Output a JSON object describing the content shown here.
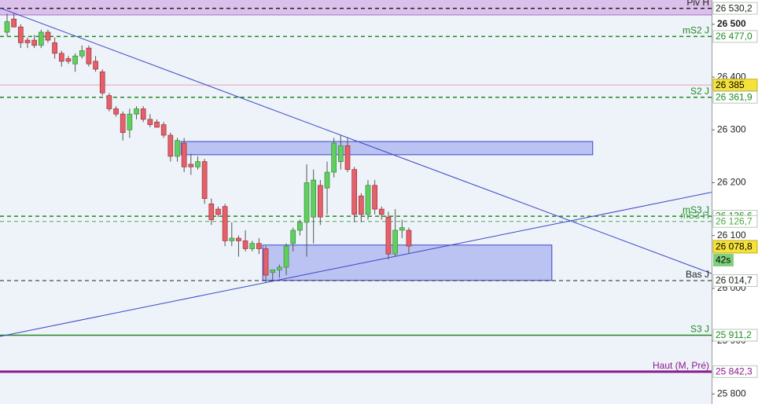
{
  "chart_data": {
    "type": "candlestick",
    "ylim": [
      25781,
      26546
    ],
    "yticks": [
      {
        "value": 26500,
        "label": "26 500",
        "bold": true
      },
      {
        "value": 26400,
        "label": "26 400"
      },
      {
        "value": 26300,
        "label": "26 300"
      },
      {
        "value": 26200,
        "label": "26 200"
      },
      {
        "value": 26100,
        "label": "26 100"
      },
      {
        "value": 26000,
        "label": "26 000"
      },
      {
        "value": 25900,
        "label": "25 900"
      },
      {
        "value": 25800,
        "label": "25 800"
      }
    ],
    "up_color": "#5fcf5f",
    "down_color": "#e4606a",
    "open": [
      26485,
      26510,
      26495,
      26470,
      26470,
      26460,
      26485,
      26465,
      26445,
      26435,
      26425,
      26440,
      26455,
      26430,
      26410,
      26365,
      26340,
      26330,
      26300,
      26330,
      26340,
      26320,
      26315,
      26310,
      26290,
      26250,
      26275,
      26235,
      26230,
      26240,
      26160,
      26150,
      26155,
      26090,
      26095,
      26090,
      26075,
      26085,
      26075,
      26030,
      26035,
      26040,
      26085,
      26110,
      26125,
      26135,
      26195,
      26190,
      26220,
      26240,
      26270,
      26225,
      26175,
      26140,
      26195,
      26150,
      26135,
      26065,
      26110,
      26110
    ],
    "high": [
      26520,
      26520,
      26500,
      26475,
      26480,
      26490,
      26490,
      26475,
      26450,
      26440,
      26445,
      26460,
      26460,
      26440,
      26415,
      26370,
      26345,
      26335,
      26340,
      26345,
      26345,
      26330,
      26320,
      26315,
      26295,
      26285,
      26285,
      26255,
      26250,
      26245,
      26170,
      26155,
      26160,
      26125,
      26100,
      26110,
      26090,
      26095,
      26080,
      26035,
      26045,
      26085,
      26115,
      26130,
      26235,
      26225,
      26205,
      26240,
      26285,
      26290,
      26285,
      26230,
      26180,
      26205,
      26205,
      26155,
      26145,
      26150,
      26130,
      26115
    ],
    "low": [
      26478,
      26495,
      26455,
      26455,
      26455,
      26455,
      26465,
      26435,
      26420,
      26425,
      26410,
      26435,
      26420,
      26410,
      26365,
      26335,
      26325,
      26280,
      26285,
      26320,
      26315,
      26305,
      26305,
      26285,
      26240,
      26240,
      26220,
      26215,
      26225,
      26160,
      26120,
      26135,
      26080,
      26080,
      26060,
      26070,
      26070,
      26065,
      26010,
      26015,
      26020,
      26025,
      26070,
      26100,
      26060,
      26085,
      26120,
      26140,
      26210,
      26225,
      26220,
      26125,
      26125,
      26130,
      26140,
      26130,
      26055,
      26060,
      26095,
      26065
    ],
    "close": [
      26505,
      26495,
      26465,
      26465,
      26460,
      26485,
      26470,
      26445,
      26430,
      26430,
      26440,
      26450,
      26425,
      26415,
      26370,
      26340,
      26330,
      26295,
      26330,
      26340,
      26320,
      26310,
      26305,
      26290,
      26250,
      26280,
      26230,
      26230,
      26240,
      26170,
      26130,
      26140,
      26090,
      26095,
      26090,
      26075,
      26085,
      26075,
      26025,
      26035,
      26040,
      26080,
      26110,
      26125,
      26200,
      26205,
      26135,
      26220,
      26275,
      26270,
      26225,
      26140,
      26140,
      26195,
      26150,
      26140,
      26065,
      26110,
      26115,
      26080
    ],
    "levels": [
      {
        "name": "Piv H",
        "value": 26530.2,
        "value_label": "26 530,2",
        "color": "#222222",
        "style": "dashed",
        "width": 1.5,
        "label_fill": "#ffffff"
      },
      {
        "name": "mS2 J",
        "value": 26477.0,
        "value_label": "26 477,0",
        "color": "#1f8a1f",
        "style": "dashed",
        "width": 1.5,
        "label_fill": "#ffffff"
      },
      {
        "value": 26385,
        "value_label": "26 385",
        "color": "#e8a0b0",
        "style": "solid",
        "width": 1,
        "label_fill": "#f5e23a"
      },
      {
        "name": "S2 J",
        "value": 26361.9,
        "value_label": "26 361,9",
        "color": "#1f8a1f",
        "style": "dashed",
        "width": 1.5,
        "label_fill": "#ffffff"
      },
      {
        "name": "mS3 J",
        "value": 26136.6,
        "value_label": "26 136,6",
        "color": "#1f8a1f",
        "style": "dashed",
        "width": 1.5,
        "label_fill": "#ffffff"
      },
      {
        "name": "mS3 H",
        "value": 26126.7,
        "value_label": "26 126,7",
        "color": "#4aa84a",
        "style": "dashed",
        "width": 1,
        "label_fill": "#ffffff"
      },
      {
        "name": "Bas J",
        "value": 26014.7,
        "value_label": "26 014,7",
        "color": "#222222",
        "style": "dashed",
        "width": 1,
        "label_fill": "#ffffff"
      },
      {
        "name": "S3 J",
        "value": 25911.2,
        "value_label": "25 911,2",
        "color": "#1f8a1f",
        "style": "solid",
        "width": 1.5,
        "label_fill": "#ffffff"
      },
      {
        "name": "Haut (M, Pré)",
        "value": 25842.3,
        "value_label": "25 842,3",
        "color": "#8a1a8a",
        "style": "solid",
        "width": 3,
        "label_fill": "#ffffff"
      }
    ],
    "current": {
      "value": 26078.8,
      "value_label": "26 078,8",
      "timer": "42s",
      "fill": "#f5e23a",
      "timer_fill": "#7ed07e"
    },
    "zones": [
      {
        "start": 26,
        "end": 86,
        "top": 26278,
        "bottom": 26253
      },
      {
        "start": 38,
        "end": 80,
        "top": 26082,
        "bottom": 26015
      }
    ],
    "trend_lines": [
      {
        "start": 26531,
        "end": 26028
      },
      {
        "start": 25909,
        "end": 26182
      }
    ],
    "line_color": "#3a46c6"
  }
}
